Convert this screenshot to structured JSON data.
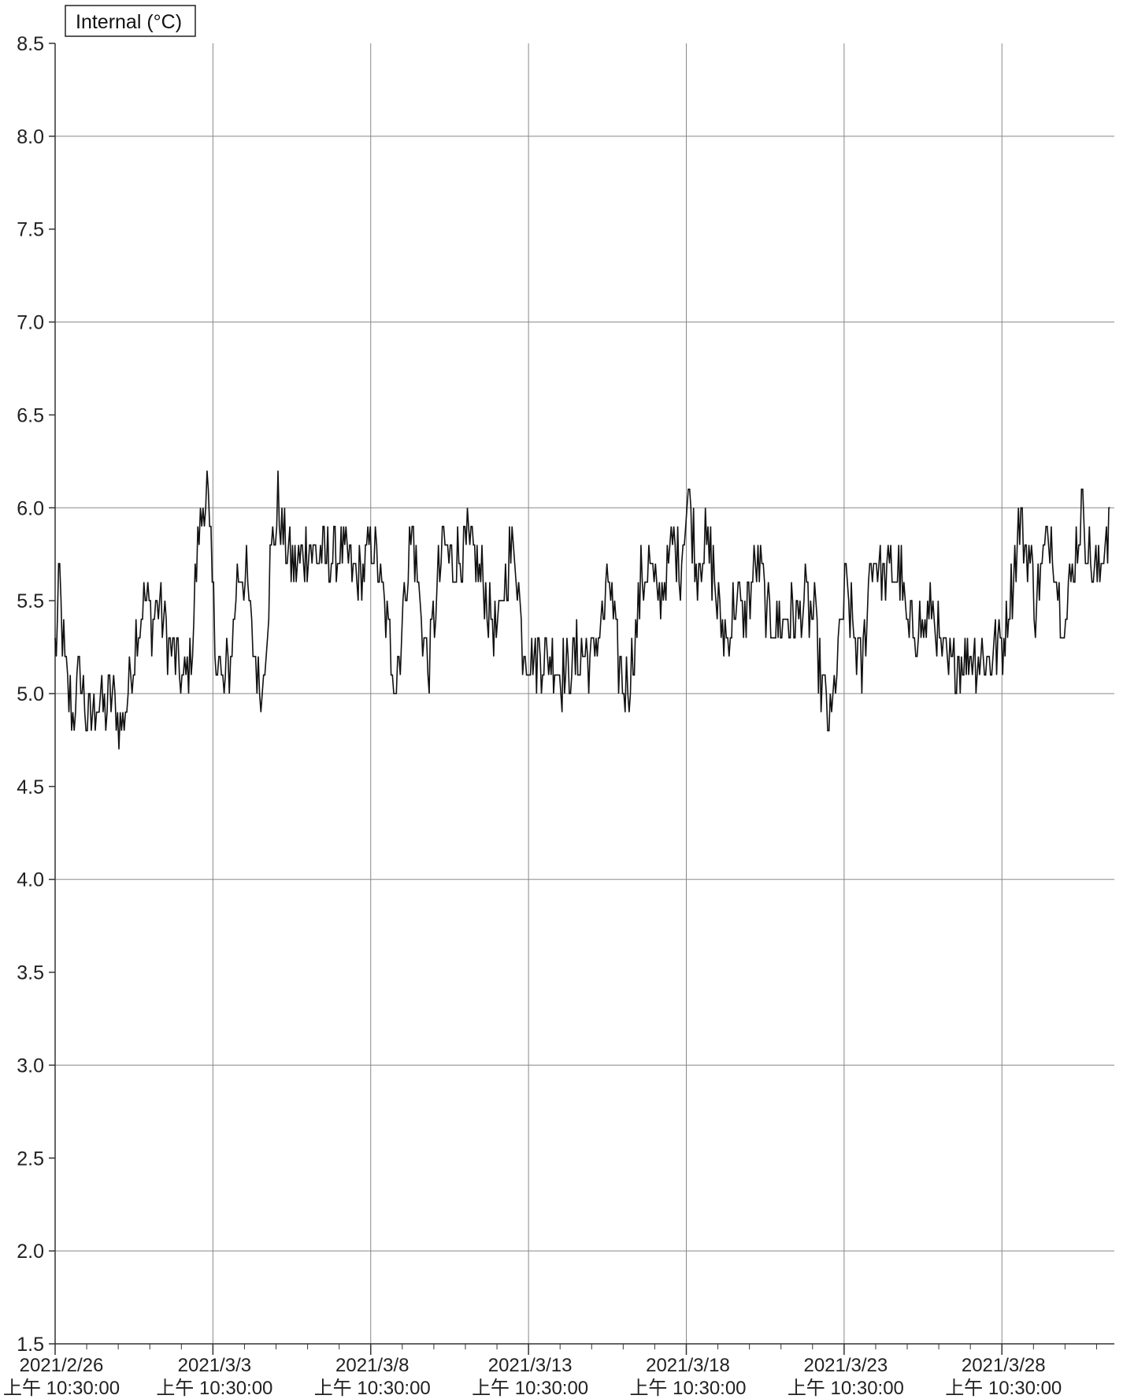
{
  "chart_data": {
    "type": "line",
    "title": "",
    "legend": {
      "label": "Internal (°C)",
      "placement": "top-left"
    },
    "xlabel": "",
    "ylabel": "",
    "y_ticks": [
      "1.5",
      "2.0",
      "2.5",
      "3.0",
      "3.5",
      "4.0",
      "4.5",
      "5.0",
      "5.5",
      "6.0",
      "6.5",
      "7.0",
      "7.5",
      "8.0",
      "8.5"
    ],
    "ylim": [
      1.5,
      8.5
    ],
    "x_start": "2021-02-26T10:30:00",
    "x_end": "2021-04-01T00:00:00",
    "x_ticks": [
      {
        "date": "2021/2/26",
        "time": "上午 10:30:00"
      },
      {
        "date": "2021/3/3",
        "time": "上午 10:30:00"
      },
      {
        "date": "2021/3/8",
        "time": "上午 10:30:00"
      },
      {
        "date": "2021/3/13",
        "time": "上午 10:30:00"
      },
      {
        "date": "2021/3/18",
        "time": "上午 10:30:00"
      },
      {
        "date": "2021/3/23",
        "time": "上午 10:30:00"
      },
      {
        "date": "2021/3/28",
        "time": "上午 10:30:00"
      }
    ],
    "grid": true,
    "series": [
      {
        "name": "Internal (°C)",
        "color": "#111111",
        "points": [
          [
            "2021-02-26T10:30:00",
            5.2
          ],
          [
            "2021-02-26T14:00:00",
            5.6
          ],
          [
            "2021-02-26T18:00:00",
            5.1
          ],
          [
            "2021-02-27T00:00:00",
            4.9
          ],
          [
            "2021-02-27T06:00:00",
            5.1
          ],
          [
            "2021-02-27T12:00:00",
            4.8
          ],
          [
            "2021-02-27T18:00:00",
            5.0
          ],
          [
            "2021-02-28T00:00:00",
            4.9
          ],
          [
            "2021-02-28T06:00:00",
            5.0
          ],
          [
            "2021-02-28T12:00:00",
            4.8
          ],
          [
            "2021-02-28T18:00:00",
            5.0
          ],
          [
            "2021-03-01T00:00:00",
            5.3
          ],
          [
            "2021-03-01T06:00:00",
            5.5
          ],
          [
            "2021-03-01T12:00:00",
            5.4
          ],
          [
            "2021-03-01T18:00:00",
            5.5
          ],
          [
            "2021-03-02T00:00:00",
            5.3
          ],
          [
            "2021-03-02T06:00:00",
            5.2
          ],
          [
            "2021-03-02T12:00:00",
            5.0
          ],
          [
            "2021-03-02T18:00:00",
            5.2
          ],
          [
            "2021-03-03T00:00:00",
            5.9
          ],
          [
            "2021-03-03T06:00:00",
            6.1
          ],
          [
            "2021-03-03T12:00:00",
            5.3
          ],
          [
            "2021-03-03T18:00:00",
            5.0
          ],
          [
            "2021-03-04T00:00:00",
            5.2
          ],
          [
            "2021-03-04T06:00:00",
            5.7
          ],
          [
            "2021-03-04T12:00:00",
            5.6
          ],
          [
            "2021-03-04T18:00:00",
            5.2
          ],
          [
            "2021-03-05T00:00:00",
            5.0
          ],
          [
            "2021-03-05T06:00:00",
            5.7
          ],
          [
            "2021-03-05T12:00:00",
            6.0
          ],
          [
            "2021-03-05T18:00:00",
            5.8
          ],
          [
            "2021-03-06T00:00:00",
            5.7
          ],
          [
            "2021-03-06T12:00:00",
            5.8
          ],
          [
            "2021-03-07T00:00:00",
            5.7
          ],
          [
            "2021-03-07T12:00:00",
            5.8
          ],
          [
            "2021-03-08T00:00:00",
            5.6
          ],
          [
            "2021-03-08T12:00:00",
            5.8
          ],
          [
            "2021-03-08T18:00:00",
            5.6
          ],
          [
            "2021-03-09T00:00:00",
            5.3
          ],
          [
            "2021-03-09T06:00:00",
            5.1
          ],
          [
            "2021-03-09T12:00:00",
            5.5
          ],
          [
            "2021-03-09T18:00:00",
            5.9
          ],
          [
            "2021-03-10T00:00:00",
            5.5
          ],
          [
            "2021-03-10T06:00:00",
            5.1
          ],
          [
            "2021-03-10T12:00:00",
            5.5
          ],
          [
            "2021-03-10T18:00:00",
            5.8
          ],
          [
            "2021-03-11T00:00:00",
            5.7
          ],
          [
            "2021-03-11T12:00:00",
            5.8
          ],
          [
            "2021-03-12T00:00:00",
            5.6
          ],
          [
            "2021-03-12T06:00:00",
            5.4
          ],
          [
            "2021-03-12T12:00:00",
            5.3
          ],
          [
            "2021-03-12T18:00:00",
            5.7
          ],
          [
            "2021-03-13T00:00:00",
            5.8
          ],
          [
            "2021-03-13T06:00:00",
            5.3
          ],
          [
            "2021-03-13T12:00:00",
            5.2
          ],
          [
            "2021-03-14T00:00:00",
            5.2
          ],
          [
            "2021-03-14T12:00:00",
            5.1
          ],
          [
            "2021-03-15T00:00:00",
            5.2
          ],
          [
            "2021-03-15T12:00:00",
            5.2
          ],
          [
            "2021-03-16T00:00:00",
            5.6
          ],
          [
            "2021-03-16T06:00:00",
            5.2
          ],
          [
            "2021-03-16T12:00:00",
            5.0
          ],
          [
            "2021-03-16T18:00:00",
            5.2
          ],
          [
            "2021-03-17T00:00:00",
            5.6
          ],
          [
            "2021-03-17T06:00:00",
            5.7
          ],
          [
            "2021-03-17T12:00:00",
            5.5
          ],
          [
            "2021-03-17T18:00:00",
            5.6
          ],
          [
            "2021-03-18T00:00:00",
            5.8
          ],
          [
            "2021-03-18T06:00:00",
            5.7
          ],
          [
            "2021-03-18T12:00:00",
            6.1
          ],
          [
            "2021-03-18T18:00:00",
            5.7
          ],
          [
            "2021-03-19T00:00:00",
            5.8
          ],
          [
            "2021-03-19T06:00:00",
            5.7
          ],
          [
            "2021-03-19T12:00:00",
            5.4
          ],
          [
            "2021-03-19T18:00:00",
            5.3
          ],
          [
            "2021-03-20T00:00:00",
            5.5
          ],
          [
            "2021-03-20T06:00:00",
            5.4
          ],
          [
            "2021-03-20T12:00:00",
            5.6
          ],
          [
            "2021-03-20T18:00:00",
            5.7
          ],
          [
            "2021-03-21T00:00:00",
            5.4
          ],
          [
            "2021-03-21T12:00:00",
            5.4
          ],
          [
            "2021-03-22T00:00:00",
            5.4
          ],
          [
            "2021-03-22T06:00:00",
            5.5
          ],
          [
            "2021-03-22T12:00:00",
            5.4
          ],
          [
            "2021-03-22T18:00:00",
            5.0
          ],
          [
            "2021-03-23T00:00:00",
            4.8
          ],
          [
            "2021-03-23T06:00:00",
            5.2
          ],
          [
            "2021-03-23T12:00:00",
            5.6
          ],
          [
            "2021-03-23T18:00:00",
            5.3
          ],
          [
            "2021-03-24T00:00:00",
            5.1
          ],
          [
            "2021-03-24T06:00:00",
            5.7
          ],
          [
            "2021-03-24T12:00:00",
            5.7
          ],
          [
            "2021-03-24T18:00:00",
            5.6
          ],
          [
            "2021-03-25T00:00:00",
            5.7
          ],
          [
            "2021-03-25T06:00:00",
            5.6
          ],
          [
            "2021-03-25T12:00:00",
            5.3
          ],
          [
            "2021-03-25T18:00:00",
            5.4
          ],
          [
            "2021-03-26T00:00:00",
            5.3
          ],
          [
            "2021-03-26T06:00:00",
            5.5
          ],
          [
            "2021-03-26T12:00:00",
            5.2
          ],
          [
            "2021-03-26T18:00:00",
            5.1
          ],
          [
            "2021-03-27T00:00:00",
            5.2
          ],
          [
            "2021-03-27T12:00:00",
            5.2
          ],
          [
            "2021-03-28T00:00:00",
            5.2
          ],
          [
            "2021-03-28T12:00:00",
            5.3
          ],
          [
            "2021-03-29T00:00:00",
            5.9
          ],
          [
            "2021-03-29T06:00:00",
            5.8
          ],
          [
            "2021-03-29T12:00:00",
            5.5
          ],
          [
            "2021-03-29T18:00:00",
            5.7
          ],
          [
            "2021-03-30T00:00:00",
            5.9
          ],
          [
            "2021-03-30T06:00:00",
            5.5
          ],
          [
            "2021-03-30T12:00:00",
            5.4
          ],
          [
            "2021-03-30T18:00:00",
            5.8
          ],
          [
            "2021-03-31T00:00:00",
            6.0
          ],
          [
            "2021-03-31T06:00:00",
            5.7
          ],
          [
            "2021-03-31T12:00:00",
            5.6
          ],
          [
            "2021-03-31T18:00:00",
            5.9
          ]
        ]
      }
    ]
  }
}
